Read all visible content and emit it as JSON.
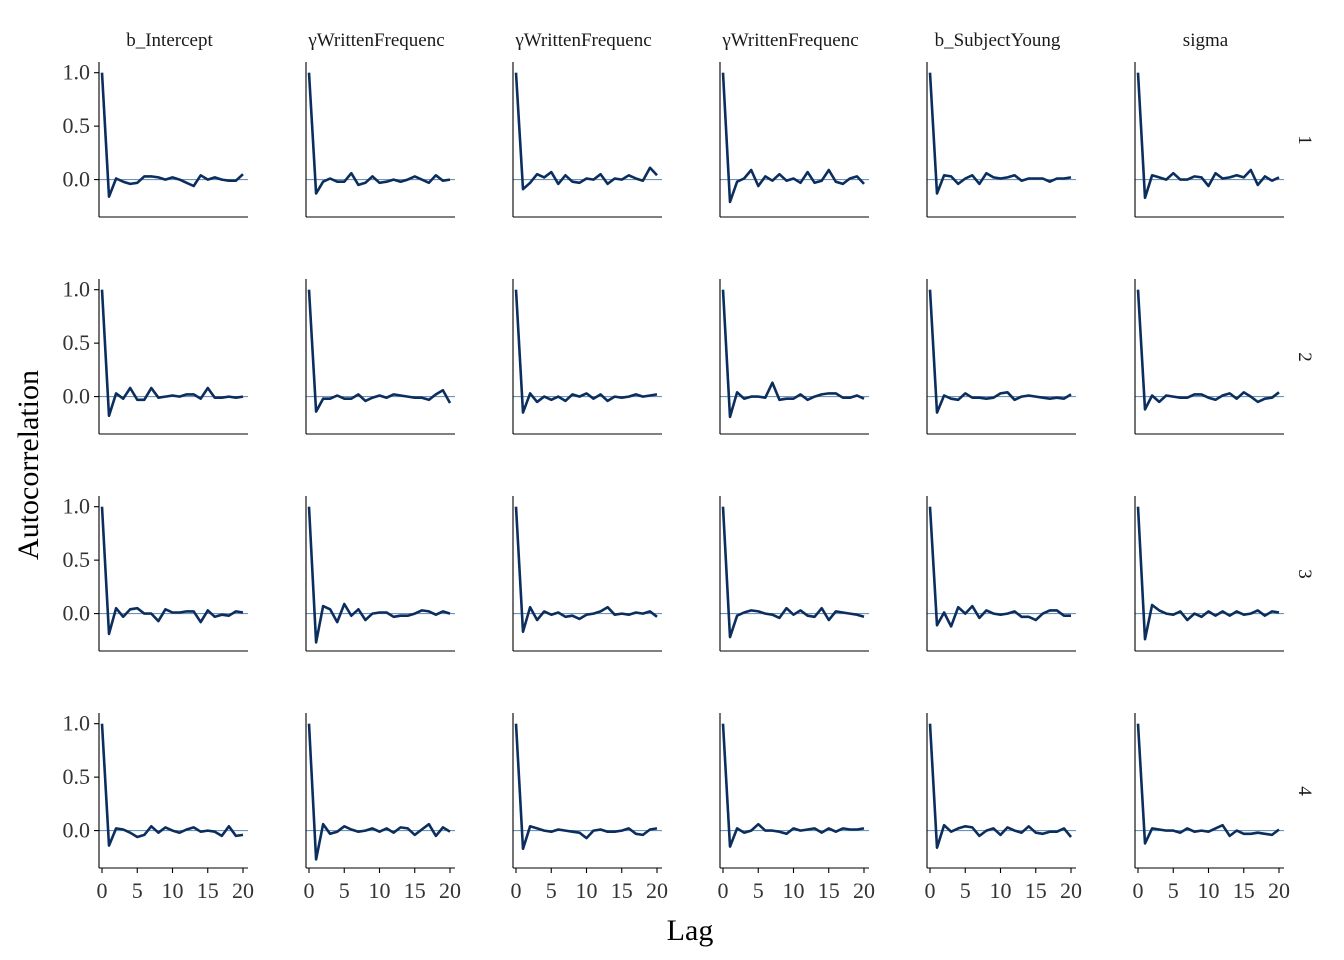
{
  "chart_data": {
    "type": "line",
    "xlabel": "Lag",
    "ylabel": "Autocorrelation",
    "xlim": [
      0,
      20
    ],
    "ylim": [
      -0.35,
      1.1
    ],
    "x_ticks": [
      0,
      5,
      10,
      15,
      20
    ],
    "y_ticks": [
      0.0,
      0.5,
      1.0
    ],
    "y_tick_labels": [
      "0.0",
      "0.5",
      "1.0"
    ],
    "reference_line_y": 0,
    "line_color": "#0b2e5e",
    "reference_color": "#6f94b8",
    "parameters": [
      "b_Intercept",
      "γWrittenFrequenc",
      "γWrittenFrequenc",
      "γWrittenFrequenc",
      "b_SubjectYoung",
      "sigma"
    ],
    "chains": [
      "1",
      "2",
      "3",
      "4"
    ],
    "lags": [
      0,
      1,
      2,
      3,
      4,
      5,
      6,
      7,
      8,
      9,
      10,
      11,
      12,
      13,
      14,
      15,
      16,
      17,
      18,
      19,
      20
    ],
    "acf": [
      [
        [
          1.0,
          -0.16,
          0.01,
          -0.02,
          -0.04,
          -0.03,
          0.03,
          0.03,
          0.02,
          0.0,
          0.02,
          0.0,
          -0.03,
          -0.06,
          0.04,
          0.0,
          0.02,
          0.0,
          -0.01,
          -0.01,
          0.05
        ],
        [
          1.0,
          -0.13,
          -0.02,
          0.01,
          -0.02,
          -0.02,
          0.06,
          -0.05,
          -0.03,
          0.03,
          -0.03,
          -0.02,
          0.0,
          -0.02,
          0.0,
          0.03,
          0.0,
          -0.03,
          0.04,
          -0.01,
          0.0
        ],
        [
          1.0,
          -0.09,
          -0.03,
          0.05,
          0.02,
          0.07,
          -0.04,
          0.04,
          -0.02,
          -0.03,
          0.01,
          0.0,
          0.05,
          -0.04,
          0.01,
          0.0,
          0.04,
          0.01,
          -0.01,
          0.11,
          0.04
        ],
        [
          1.0,
          -0.21,
          -0.02,
          0.01,
          0.09,
          -0.06,
          0.03,
          -0.01,
          0.05,
          -0.01,
          0.01,
          -0.03,
          0.07,
          -0.03,
          -0.01,
          0.09,
          -0.02,
          -0.04,
          0.01,
          0.03,
          -0.04
        ],
        [
          1.0,
          -0.13,
          0.04,
          0.03,
          -0.04,
          0.01,
          0.04,
          -0.04,
          0.06,
          0.02,
          0.01,
          0.02,
          0.04,
          -0.01,
          0.01,
          0.01,
          0.01,
          -0.02,
          0.01,
          0.01,
          0.02
        ],
        [
          1.0,
          -0.17,
          0.04,
          0.02,
          0.0,
          0.06,
          0.0,
          0.0,
          0.03,
          0.02,
          -0.06,
          0.06,
          0.01,
          0.02,
          0.04,
          0.02,
          0.09,
          -0.05,
          0.03,
          -0.01,
          0.02
        ]
      ],
      [
        [
          1.0,
          -0.18,
          0.03,
          -0.02,
          0.08,
          -0.03,
          -0.03,
          0.08,
          -0.01,
          0.0,
          0.01,
          0.0,
          0.02,
          0.02,
          -0.02,
          0.08,
          -0.01,
          -0.01,
          0.0,
          -0.01,
          0.0
        ],
        [
          1.0,
          -0.14,
          -0.02,
          -0.02,
          0.01,
          -0.02,
          -0.02,
          0.02,
          -0.04,
          -0.01,
          0.01,
          -0.01,
          0.02,
          0.01,
          0.0,
          -0.01,
          -0.01,
          -0.03,
          0.02,
          0.06,
          -0.06
        ],
        [
          1.0,
          -0.15,
          0.03,
          -0.05,
          0.0,
          -0.03,
          0.0,
          -0.04,
          0.02,
          0.0,
          0.03,
          -0.02,
          0.02,
          -0.04,
          0.0,
          -0.01,
          0.0,
          0.02,
          0.0,
          0.01,
          0.02
        ],
        [
          1.0,
          -0.19,
          0.04,
          -0.02,
          0.0,
          0.0,
          -0.01,
          0.13,
          -0.03,
          -0.02,
          -0.02,
          0.02,
          -0.03,
          0.0,
          0.02,
          0.03,
          0.03,
          -0.01,
          -0.01,
          0.01,
          -0.02
        ],
        [
          1.0,
          -0.15,
          0.01,
          -0.02,
          -0.03,
          0.03,
          -0.01,
          -0.01,
          -0.02,
          -0.01,
          0.03,
          0.04,
          -0.03,
          0.0,
          0.01,
          0.0,
          -0.01,
          -0.02,
          -0.01,
          -0.02,
          0.02
        ],
        [
          1.0,
          -0.12,
          0.01,
          -0.05,
          0.01,
          0.0,
          -0.01,
          -0.01,
          0.02,
          0.02,
          -0.01,
          -0.03,
          0.01,
          0.03,
          -0.02,
          0.04,
          0.0,
          -0.05,
          -0.02,
          -0.01,
          0.04
        ]
      ],
      [
        [
          1.0,
          -0.19,
          0.05,
          -0.03,
          0.04,
          0.05,
          0.0,
          0.0,
          -0.07,
          0.04,
          0.01,
          0.01,
          0.02,
          0.02,
          -0.08,
          0.03,
          -0.03,
          -0.01,
          -0.02,
          0.02,
          0.01
        ],
        [
          1.0,
          -0.27,
          0.07,
          0.04,
          -0.08,
          0.09,
          -0.02,
          0.04,
          -0.06,
          0.0,
          0.01,
          0.01,
          -0.03,
          -0.02,
          -0.02,
          0.0,
          0.03,
          0.02,
          -0.01,
          0.02,
          0.0
        ],
        [
          1.0,
          -0.17,
          0.06,
          -0.06,
          0.02,
          -0.01,
          0.01,
          -0.03,
          -0.02,
          -0.05,
          -0.01,
          0.0,
          0.02,
          0.06,
          -0.01,
          0.0,
          -0.01,
          0.01,
          0.0,
          0.02,
          -0.03
        ],
        [
          1.0,
          -0.22,
          -0.02,
          0.01,
          0.03,
          0.02,
          0.0,
          -0.01,
          -0.04,
          0.05,
          -0.01,
          0.03,
          -0.02,
          -0.03,
          0.05,
          -0.06,
          0.02,
          0.01,
          0.0,
          -0.01,
          -0.03
        ],
        [
          1.0,
          -0.11,
          0.01,
          -0.12,
          0.06,
          0.0,
          0.07,
          -0.04,
          0.03,
          0.0,
          -0.01,
          0.0,
          0.02,
          -0.03,
          -0.03,
          -0.06,
          0.0,
          0.03,
          0.03,
          -0.02,
          -0.02
        ],
        [
          1.0,
          -0.24,
          0.08,
          0.03,
          0.0,
          -0.01,
          0.02,
          -0.06,
          0.0,
          -0.03,
          0.02,
          -0.02,
          0.02,
          -0.02,
          0.02,
          -0.01,
          0.0,
          0.03,
          -0.02,
          0.02,
          0.01
        ]
      ],
      [
        [
          1.0,
          -0.14,
          0.02,
          0.01,
          -0.02,
          -0.06,
          -0.04,
          0.04,
          -0.02,
          0.03,
          0.0,
          -0.02,
          0.01,
          0.03,
          -0.01,
          0.0,
          -0.01,
          -0.05,
          0.04,
          -0.05,
          -0.04
        ],
        [
          1.0,
          -0.27,
          0.06,
          -0.03,
          -0.01,
          0.04,
          0.01,
          -0.01,
          0.0,
          0.02,
          -0.01,
          0.02,
          -0.02,
          0.03,
          0.02,
          -0.04,
          0.01,
          0.06,
          -0.05,
          0.03,
          -0.01
        ],
        [
          1.0,
          -0.17,
          0.04,
          0.02,
          0.0,
          -0.01,
          0.01,
          0.0,
          -0.01,
          -0.02,
          -0.07,
          0.0,
          0.01,
          -0.01,
          -0.01,
          0.0,
          0.02,
          -0.03,
          -0.04,
          0.01,
          0.02
        ],
        [
          1.0,
          -0.15,
          0.02,
          -0.02,
          0.0,
          0.06,
          0.0,
          0.0,
          -0.01,
          -0.03,
          0.02,
          0.0,
          0.01,
          0.02,
          -0.02,
          0.02,
          -0.01,
          0.02,
          0.01,
          0.01,
          0.02
        ],
        [
          1.0,
          -0.16,
          0.05,
          -0.01,
          0.02,
          0.04,
          0.03,
          -0.05,
          0.0,
          0.02,
          -0.04,
          0.03,
          0.0,
          -0.02,
          0.04,
          -0.02,
          -0.03,
          -0.01,
          -0.01,
          0.02,
          -0.06
        ],
        [
          1.0,
          -0.12,
          0.02,
          0.01,
          0.0,
          0.0,
          -0.02,
          0.02,
          -0.01,
          0.0,
          -0.01,
          0.02,
          0.05,
          -0.05,
          0.0,
          -0.03,
          -0.03,
          -0.02,
          -0.03,
          -0.04,
          0.01
        ]
      ]
    ]
  }
}
